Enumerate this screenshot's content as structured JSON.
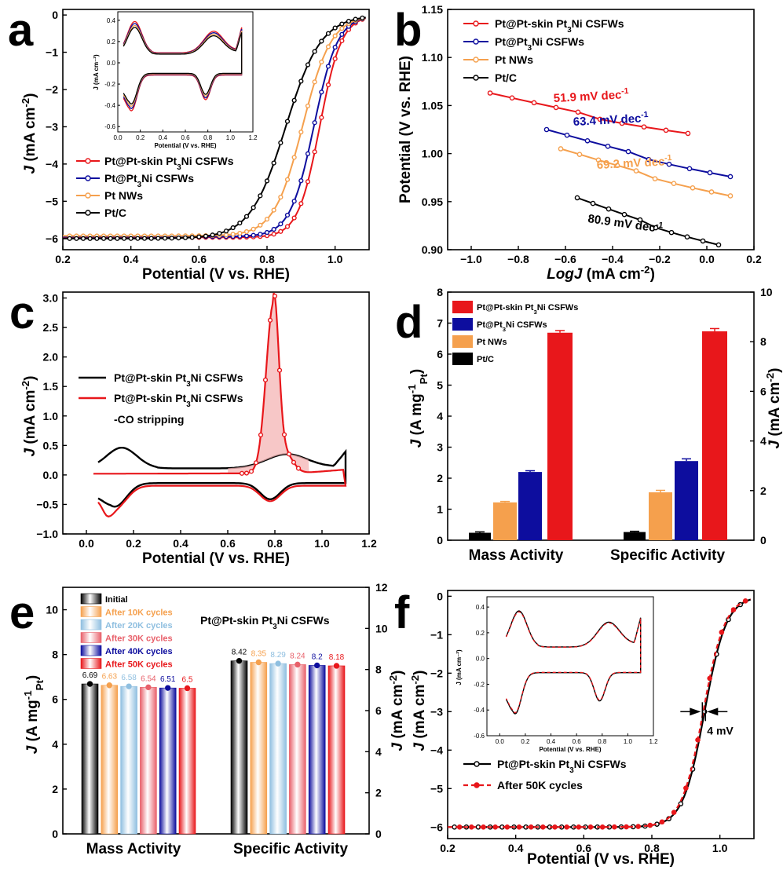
{
  "colors": {
    "skin": "#e8171b",
    "pt3ni": "#0d0d9e",
    "ptnw": "#f5a04d",
    "ptc": "#000000",
    "lb10": "#f5a04d",
    "lb20": "#8fbfe0",
    "lb30": "#e8606a",
    "lb40": "#0d0d9e",
    "lb50": "#e8171b"
  },
  "panel_labels": [
    "a",
    "b",
    "c",
    "d",
    "e",
    "f"
  ],
  "chart_data": [
    {
      "id": "a",
      "type": "line",
      "xlabel": "Potential (V vs. RHE)",
      "ylabel_main": "J",
      "ylabel_unit": " (mA cm",
      "ylabel_sup": "-2",
      "ylabel_end": ")",
      "xlim": [
        0.2,
        1.1
      ],
      "ylim": [
        -6.3,
        0.15
      ],
      "xticks": [
        0.2,
        0.4,
        0.6,
        0.8,
        1.0
      ],
      "xticklabels": [
        "0.2",
        "0.4",
        "0.6",
        "0.8",
        "1.0"
      ],
      "yticks": [
        0,
        -1,
        -2,
        -3,
        -4,
        -5,
        -6
      ],
      "yticklabels": [
        "0",
        "−1",
        "−2",
        "−3",
        "−4",
        "−5",
        "−6"
      ],
      "legend": [
        "Pt@Pt-skin Pt3Ni CSFWs",
        "Pt@Pt3Ni CSFWs",
        "Pt NWs",
        "Pt/C"
      ],
      "series": [
        {
          "name": "Pt@Pt-skin Pt3Ni CSFWs",
          "color": "skin",
          "e12": 0.955,
          "w": 0.032,
          "jl": -5.97
        },
        {
          "name": "Pt@Pt3Ni CSFWs",
          "color": "pt3ni",
          "e12": 0.938,
          "w": 0.035,
          "jl": -5.95
        },
        {
          "name": "Pt NWs",
          "color": "ptnw",
          "e12": 0.905,
          "w": 0.042,
          "jl": -5.93
        },
        {
          "name": "Pt/C",
          "color": "ptc",
          "e12": 0.855,
          "w": 0.052,
          "jl": -6.0
        }
      ],
      "inset": {
        "xlabel": "Potential (V vs. RHE)",
        "ylabel": "J (mA cm⁻²)",
        "xlim": [
          0,
          1.2
        ],
        "ylim": [
          -0.65,
          0.48
        ],
        "xticks": [
          0,
          0.2,
          0.4,
          0.6,
          0.8,
          1.0,
          1.2
        ],
        "xticklabels": [
          "0.0",
          "0.2",
          "0.4",
          "0.6",
          "0.8",
          "1.0",
          "1.2"
        ],
        "yticks": [
          0.4,
          0.2,
          0,
          -0.2,
          -0.4,
          -0.6
        ],
        "yticklabels": [
          "0.4",
          "0.2",
          "0.0",
          "-0.2",
          "-0.4",
          "-0.6"
        ]
      }
    },
    {
      "id": "b",
      "type": "line",
      "xlabel_main": "LogJ",
      "xlabel_unit": " (mA cm",
      "xlabel_sup": "-2",
      "xlabel_end": ")",
      "ylabel": "Potential (V vs. RHE)",
      "xlim": [
        -1.1,
        0.2
      ],
      "ylim": [
        0.9,
        1.15
      ],
      "xticks": [
        -1.0,
        -0.8,
        -0.6,
        -0.4,
        -0.2,
        0,
        0.2
      ],
      "xticklabels": [
        "−1.0",
        "−0.8",
        "−0.6",
        "−0.4",
        "−0.2",
        "0.0",
        "0.2"
      ],
      "yticks": [
        0.9,
        0.95,
        1.0,
        1.05,
        1.1,
        1.15
      ],
      "yticklabels": [
        "0.90",
        "0.95",
        "1.00",
        "1.05",
        "1.10",
        "1.15"
      ],
      "legend": [
        "Pt@Pt-skin Pt3Ni CSFWs",
        "Pt@Pt3Ni CSFWs",
        "Pt NWs",
        "Pt/C"
      ],
      "series": [
        {
          "name": "Pt@Pt-skin Pt3Ni CSFWs",
          "color": "skin",
          "x0": -0.92,
          "x1": -0.08,
          "y0": 1.063,
          "y1": 1.021,
          "slope": "51.9 mV dec",
          "slope_sup": "-1"
        },
        {
          "name": "Pt@Pt3Ni CSFWs",
          "color": "pt3ni",
          "x0": -0.68,
          "x1": 0.1,
          "y0": 1.025,
          "y1": 0.976,
          "slope": "63.4 mV dec",
          "slope_sup": "-1"
        },
        {
          "name": "Pt NWs",
          "color": "ptnw",
          "x0": -0.62,
          "x1": 0.1,
          "y0": 1.005,
          "y1": 0.956,
          "slope": "69.2 mV dec",
          "slope_sup": "-1"
        },
        {
          "name": "Pt/C",
          "color": "ptc",
          "x0": -0.55,
          "x1": 0.05,
          "y0": 0.954,
          "y1": 0.905,
          "slope": "80.9 mV dec",
          "slope_sup": "-1"
        }
      ]
    },
    {
      "id": "c",
      "type": "line",
      "xlabel": "Potential (V vs. RHE)",
      "ylabel_main": "J",
      "ylabel_unit": " (mA cm",
      "ylabel_sup": "-2",
      "ylabel_end": ")",
      "xlim": [
        -0.1,
        1.2
      ],
      "ylim": [
        -1.0,
        3.1
      ],
      "xticks": [
        0,
        0.2,
        0.4,
        0.6,
        0.8,
        1.0,
        1.2
      ],
      "xticklabels": [
        "0.0",
        "0.2",
        "0.4",
        "0.6",
        "0.8",
        "1.0",
        "1.2"
      ],
      "yticks": [
        -1.0,
        -0.5,
        0,
        0.5,
        1.0,
        1.5,
        2.0,
        2.5,
        3.0
      ],
      "yticklabels": [
        "−1.0",
        "−0.5",
        "0.0",
        "0.5",
        "1.0",
        "1.5",
        "2.0",
        "2.5",
        "3.0"
      ],
      "legend": [
        "Pt@Pt-skin Pt3Ni CSFWs",
        "Pt@Pt-skin Pt3Ni CSFWs"
      ],
      "legend_extra": "-CO stripping",
      "peak": {
        "x": 0.795,
        "y": 2.95
      }
    },
    {
      "id": "d",
      "type": "bar",
      "categories": [
        "Mass Activity",
        "Specific Activity"
      ],
      "ylabel_left_main": "J",
      "ylabel_left_unit": " (A mg",
      "ylabel_left_sup": "-1",
      "ylabel_left_sub": "Pt",
      "ylabel_left_end": ")",
      "ylabel_right_main": "J",
      "ylabel_right_unit": " (mA cm",
      "ylabel_right_sup": "-2",
      "ylabel_right_end": ")",
      "ylim_left": [
        0,
        8
      ],
      "ylim_right": [
        0,
        10
      ],
      "yticks_left": [
        0,
        1,
        2,
        3,
        4,
        5,
        6,
        7,
        8
      ],
      "yticks_right": [
        0,
        2,
        4,
        6,
        8,
        10
      ],
      "legend": [
        "Pt@Pt-skin Pt3Ni CSFWs",
        "Pt@Pt3Ni CSFWs",
        "Pt NWs",
        "Pt/C"
      ],
      "series": [
        {
          "name": "Pt/C",
          "color": "ptc",
          "values": [
            0.24,
            0.33
          ],
          "err": [
            0.03,
            0.03
          ]
        },
        {
          "name": "Pt NWs",
          "color": "ptnw",
          "values": [
            1.22,
            1.93
          ],
          "err": [
            0.03,
            0.08
          ]
        },
        {
          "name": "Pt@Pt3Ni CSFWs",
          "color": "pt3ni",
          "values": [
            2.2,
            3.19
          ],
          "err": [
            0.04,
            0.09
          ]
        },
        {
          "name": "Pt@Pt-skin Pt3Ni CSFWs",
          "color": "skin",
          "values": [
            6.69,
            8.42
          ],
          "err": [
            0.07,
            0.11
          ]
        }
      ]
    },
    {
      "id": "e",
      "type": "bar",
      "categories": [
        "Mass Activity",
        "Specific Activity"
      ],
      "title": "Pt@Pt-skin Pt3Ni CSFWs",
      "ylabel_left_main": "J",
      "ylabel_left_unit": " (A mg",
      "ylabel_left_sup": "-1",
      "ylabel_left_sub": "Pt",
      "ylabel_left_end": ")",
      "ylabel_right_main": "J",
      "ylabel_right_unit": " (mA cm",
      "ylabel_right_sup": "-2",
      "ylabel_right_end": ")",
      "ylim_left": [
        0,
        11
      ],
      "ylim_right": [
        0,
        12
      ],
      "yticks_left": [
        0,
        2,
        4,
        6,
        8,
        10
      ],
      "yticks_right": [
        0,
        2,
        4,
        6,
        8,
        10,
        12
      ],
      "series": [
        {
          "name": "Initial",
          "color": "ptc",
          "values": [
            6.69,
            8.42
          ],
          "labels": [
            "6.69",
            "8.42"
          ]
        },
        {
          "name": "After 10K cycles",
          "color": "lb10",
          "values": [
            6.63,
            8.35
          ],
          "labels": [
            "6.63",
            "8.35"
          ]
        },
        {
          "name": "After 20K cycles",
          "color": "lb20",
          "values": [
            6.58,
            8.29
          ],
          "labels": [
            "6.58",
            "8.29"
          ]
        },
        {
          "name": "After 30K cycles",
          "color": "lb30",
          "values": [
            6.54,
            8.24
          ],
          "labels": [
            "6.54",
            "8.24"
          ]
        },
        {
          "name": "After 40K cycles",
          "color": "lb40",
          "values": [
            6.51,
            8.2
          ],
          "labels": [
            "6.51",
            "8.2"
          ]
        },
        {
          "name": "After 50K cycles",
          "color": "lb50",
          "values": [
            6.5,
            8.18
          ],
          "labels": [
            "6.5",
            "8.18"
          ]
        }
      ]
    },
    {
      "id": "f",
      "type": "line",
      "xlabel": "Potential (V vs. RHE)",
      "ylabel_main": "J",
      "ylabel_unit": " (mA cm",
      "ylabel_sup": "-2",
      "ylabel_end": ")",
      "xlim": [
        0.2,
        1.1
      ],
      "ylim": [
        -6.3,
        0.15
      ],
      "xticks": [
        0.2,
        0.4,
        0.6,
        0.8,
        1.0
      ],
      "xticklabels": [
        "0.2",
        "0.4",
        "0.6",
        "0.8",
        "1.0"
      ],
      "yticks": [
        0,
        -1,
        -2,
        -3,
        -4,
        -5,
        -6
      ],
      "yticklabels": [
        "0",
        "−1",
        "−2",
        "−3",
        "−4",
        "−5",
        "−6"
      ],
      "legend": [
        "Pt@Pt-skin Pt3Ni CSFWs",
        "After 50K cycles"
      ],
      "annotation": "4 mV",
      "shift_mV": 4,
      "series": [
        {
          "name": "Pt@Pt-skin Pt3Ni CSFWs",
          "color": "ptc",
          "e12": 0.955,
          "w": 0.032,
          "jl": -6.0
        },
        {
          "name": "After 50K cycles",
          "color": "skin",
          "e12": 0.951,
          "w": 0.032,
          "jl": -6.0
        }
      ],
      "inset": {
        "xlabel": "Potential (V vs. RHE)",
        "ylabel": "J (mA cm⁻²)",
        "xlim": [
          -0.1,
          1.2
        ],
        "ylim": [
          -0.6,
          0.48
        ],
        "xticks": [
          0,
          0.2,
          0.4,
          0.6,
          0.8,
          1.0,
          1.2
        ],
        "xticklabels": [
          "0.0",
          "0.2",
          "0.4",
          "0.6",
          "0.8",
          "1.0",
          "1.2"
        ],
        "yticks": [
          0.4,
          0.2,
          0,
          -0.2,
          -0.4,
          -0.6
        ],
        "yticklabels": [
          "0.4",
          "0.2",
          "0.0",
          "-0.2",
          "-0.4",
          "-0.6"
        ]
      }
    }
  ]
}
